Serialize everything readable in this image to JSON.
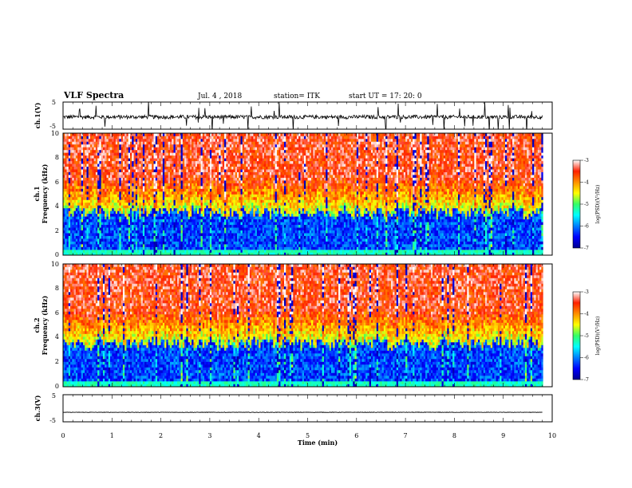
{
  "header": {
    "title": "VLF Spectra",
    "date": "Jul. 4 , 2018",
    "station": "station= ITK",
    "start": "start UT = 17: 20: 0"
  },
  "chart_data": [
    {
      "type": "line",
      "panel": "ch1-waveform",
      "ylabel": "ch.1(V)",
      "yticks": [
        "5",
        "-5"
      ],
      "ylim": [
        -5,
        5
      ],
      "xlim": [
        0,
        10
      ],
      "baseline": -0.5,
      "noise_amplitude": 0.7,
      "spike_amplitude": 4,
      "color": "#000000"
    },
    {
      "type": "heatmap",
      "panel": "ch1-spectrogram",
      "ylabel_top": "ch.1",
      "ylabel": "Frequency (kHz)",
      "yticks": [
        "0",
        "2",
        "4",
        "6",
        "8",
        "10"
      ],
      "ylim": [
        0,
        10
      ],
      "xlim": [
        0,
        10
      ],
      "data_end_min": 9.8,
      "colorbar": {
        "label": "log(PSD)(V²/Hz)",
        "ticks": [
          "-3",
          "-4",
          "-5",
          "-6",
          "-7"
        ],
        "range": [
          -7,
          -3
        ]
      }
    },
    {
      "type": "heatmap",
      "panel": "ch2-spectrogram",
      "ylabel_top": "ch.2",
      "ylabel": "Frequency (kHz)",
      "yticks": [
        "0",
        "2",
        "4",
        "6",
        "8",
        "10"
      ],
      "ylim": [
        0,
        10
      ],
      "xlim": [
        0,
        10
      ],
      "data_end_min": 9.8,
      "colorbar": {
        "label": "log(PSD)(V²/Hz)",
        "ticks": [
          "-3",
          "-4",
          "-5",
          "-6",
          "-7"
        ],
        "range": [
          -7,
          -3
        ]
      }
    },
    {
      "type": "line",
      "panel": "ch3-waveform",
      "ylabel": "ch.3(V)",
      "yticks": [
        "5",
        "-5"
      ],
      "ylim": [
        -5,
        5
      ],
      "xlim": [
        0,
        10
      ],
      "baseline": -1.5,
      "noise_amplitude": 0.08,
      "color": "#000000"
    }
  ],
  "xaxis": {
    "label": "Time (min)",
    "ticks": [
      "0",
      "1",
      "2",
      "3",
      "4",
      "5",
      "6",
      "7",
      "8",
      "9",
      "10"
    ]
  }
}
